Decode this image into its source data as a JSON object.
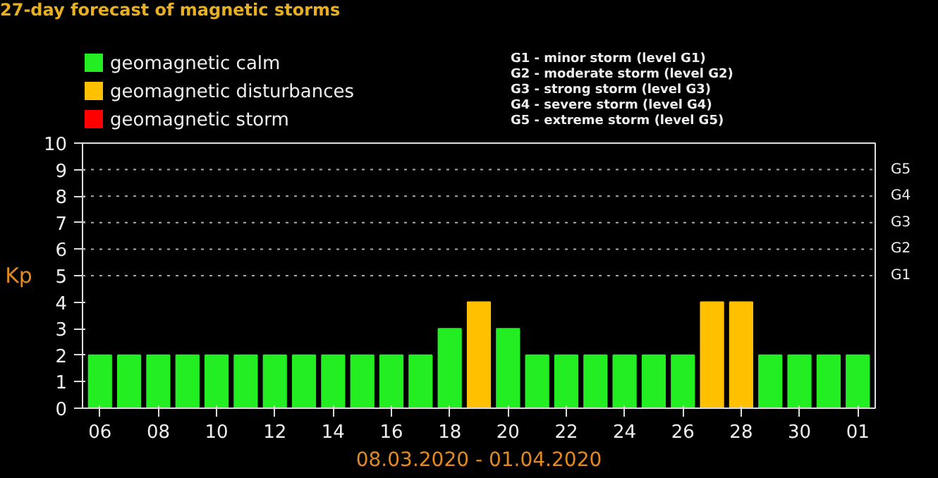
{
  "chart_data": {
    "type": "bar",
    "title": "27-day forecast of magnetic storms",
    "xlabel": "08.03.2020 - 01.04.2020",
    "ylabel": "Kp",
    "categories": [
      "06",
      null,
      "08",
      null,
      "10",
      null,
      "12",
      null,
      "14",
      null,
      "16",
      null,
      "18",
      null,
      "20",
      null,
      "22",
      null,
      "24",
      null,
      "26",
      null,
      "28",
      null,
      "30",
      null,
      "01"
    ],
    "series": [
      {
        "name": "geomagnetic calm",
        "color": "#22ee22",
        "values": [
          2,
          2,
          2,
          2,
          2,
          2,
          2,
          2,
          2,
          2,
          2,
          2,
          3,
          null,
          3,
          2,
          2,
          2,
          2,
          2,
          2,
          null,
          null,
          2,
          2,
          2,
          2
        ]
      },
      {
        "name": "geomagnetic disturbances",
        "color": "#ffc000",
        "values": [
          null,
          null,
          null,
          null,
          null,
          null,
          null,
          null,
          null,
          null,
          null,
          null,
          null,
          4,
          null,
          null,
          null,
          null,
          null,
          null,
          null,
          4,
          4,
          null,
          null,
          null,
          null
        ]
      },
      {
        "name": "geomagnetic storm",
        "color": "#ff0000",
        "values": [
          null,
          null,
          null,
          null,
          null,
          null,
          null,
          null,
          null,
          null,
          null,
          null,
          null,
          null,
          null,
          null,
          null,
          null,
          null,
          null,
          null,
          null,
          null,
          null,
          null,
          null,
          null
        ]
      }
    ],
    "ylim": [
      0,
      10
    ],
    "yticks": [
      0,
      1,
      2,
      3,
      4,
      5,
      6,
      7,
      8,
      9,
      10
    ],
    "ref_lines": [
      {
        "axis": "y",
        "value": 5,
        "label": "G1",
        "line_style": "dotted"
      },
      {
        "axis": "y",
        "value": 6,
        "label": "G2",
        "line_style": "dotted"
      },
      {
        "axis": "y",
        "value": 7,
        "label": "G3",
        "line_style": "dotted"
      },
      {
        "axis": "y",
        "value": 8,
        "label": "G4",
        "line_style": "dotted"
      },
      {
        "axis": "y",
        "value": 9,
        "label": "G5",
        "line_style": "dotted"
      }
    ],
    "legend": "top left",
    "annotations": [
      "G1 - minor storm (level G1)",
      "G2 - moderate storm (level G2)",
      "G3 - strong storm (level G3)",
      "G4 - severe storm (level G4)",
      "G5 - extreme storm (level G5)"
    ]
  }
}
